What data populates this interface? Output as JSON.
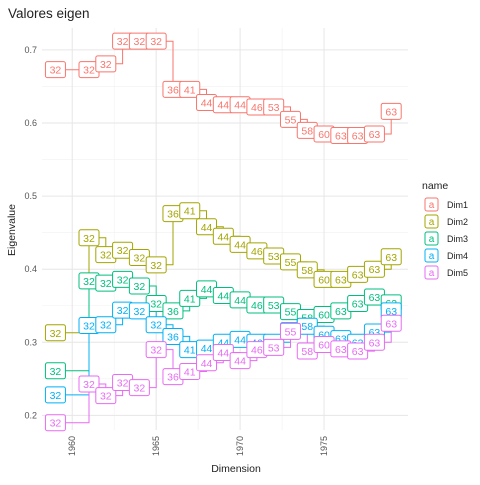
{
  "chart_data": {
    "type": "line",
    "title": "Valores eigen",
    "xlabel": "Dimension",
    "ylabel": "Eigenvalue",
    "x": [
      1959,
      1961,
      1962,
      1963,
      1964,
      1965,
      1966,
      1967,
      1968,
      1969,
      1970,
      1971,
      1972,
      1973,
      1974,
      1975,
      1976,
      1977,
      1978,
      1979
    ],
    "xlim": [
      1958.2,
      1980.0
    ],
    "ylim": [
      0.18,
      0.73
    ],
    "xticks": [
      1960,
      1965,
      1970,
      1975
    ],
    "yticks": [
      0.2,
      0.3,
      0.4,
      0.5,
      0.6,
      0.7
    ],
    "grid": true,
    "legend": {
      "title": "name",
      "position": "right",
      "key_glyph": "a"
    },
    "series": [
      {
        "name": "Dim1",
        "color": "#F8766D",
        "values": [
          0.673,
          0.673,
          0.681,
          0.712,
          0.712,
          0.712,
          0.646,
          0.646,
          0.628,
          0.625,
          0.625,
          0.622,
          0.622,
          0.605,
          0.59,
          0.585,
          0.583,
          0.583,
          0.585,
          0.616
        ],
        "labels": [
          "32",
          "32",
          "32",
          "32",
          "32",
          "32",
          "36",
          "41",
          "44",
          "44",
          "44",
          "46",
          "53",
          "55",
          "58",
          "60",
          "63",
          "63",
          "63",
          "63"
        ]
      },
      {
        "name": "Dim2",
        "color": "#A3A500",
        "values": [
          0.313,
          0.443,
          0.42,
          0.426,
          0.416,
          0.406,
          0.476,
          0.48,
          0.458,
          0.445,
          0.434,
          0.425,
          0.418,
          0.41,
          0.399,
          0.386,
          0.386,
          0.393,
          0.4,
          0.417
        ],
        "labels": [
          "32",
          "32",
          "32",
          "32",
          "32",
          "32",
          "36",
          "41",
          "44",
          "44",
          "44",
          "46",
          "53",
          "55",
          "58",
          "60",
          "63",
          "63",
          "63",
          "63"
        ]
      },
      {
        "name": "Dim3",
        "color": "#00BF7D",
        "values": [
          0.261,
          0.384,
          0.381,
          0.386,
          0.377,
          0.353,
          0.343,
          0.36,
          0.373,
          0.364,
          0.358,
          0.351,
          0.351,
          0.342,
          0.334,
          0.338,
          0.343,
          0.353,
          0.362,
          0.354
        ],
        "labels": [
          "32",
          "32",
          "32",
          "32",
          "32",
          "32",
          "36",
          "41",
          "44",
          "44",
          "44",
          "46",
          "53",
          "55",
          "58",
          "60",
          "63",
          "63",
          "63",
          "63"
        ]
      },
      {
        "name": "Dim4",
        "color": "#00B0F6",
        "values": [
          0.228,
          0.323,
          0.324,
          0.344,
          0.343,
          0.324,
          0.308,
          0.29,
          0.292,
          0.3,
          0.304,
          0.3,
          0.3,
          0.316,
          0.322,
          0.311,
          0.305,
          0.3,
          0.314,
          0.343
        ],
        "labels": [
          "32",
          "32",
          "32",
          "32",
          "32",
          "32",
          "36",
          "41",
          "44",
          "44",
          "44",
          "46",
          "53",
          "55",
          "58",
          "60",
          "63",
          "63",
          "63",
          "63"
        ]
      },
      {
        "name": "Dim5",
        "color": "#E76BF3",
        "values": [
          0.19,
          0.243,
          0.227,
          0.245,
          0.238,
          0.29,
          0.253,
          0.26,
          0.272,
          0.286,
          0.275,
          0.29,
          0.293,
          0.315,
          0.288,
          0.297,
          0.291,
          0.288,
          0.3,
          0.326
        ],
        "labels": [
          "32",
          "32",
          "32",
          "32",
          "32",
          "32",
          "36",
          "41",
          "44",
          "44",
          "44",
          "46",
          "53",
          "55",
          "58",
          "60",
          "63",
          "63",
          "63",
          "63"
        ]
      }
    ]
  }
}
